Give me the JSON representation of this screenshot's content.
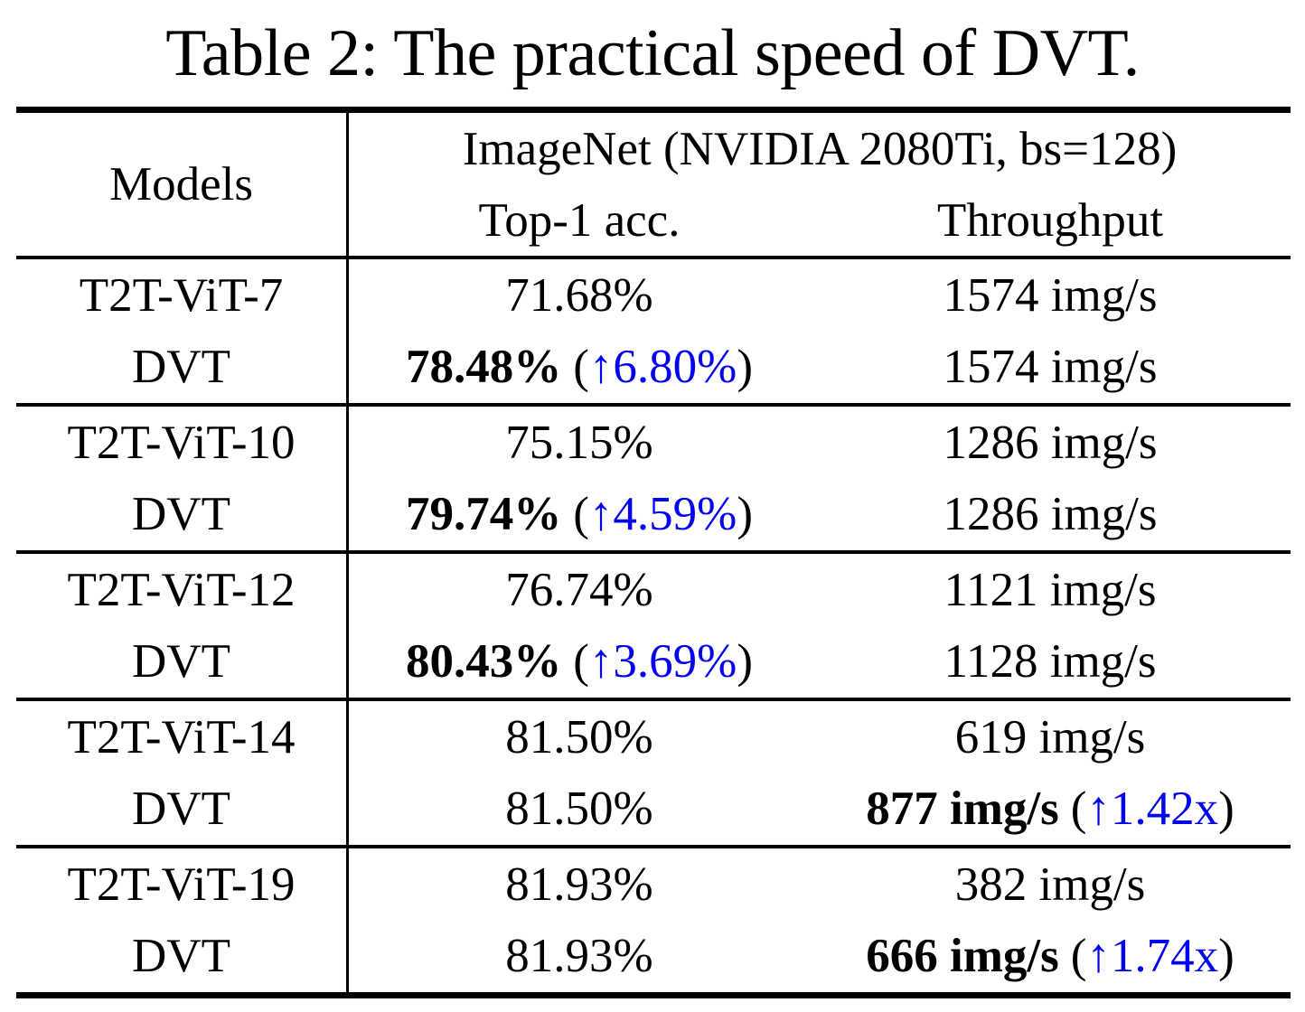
{
  "title": "Table 2: The practical speed of DVT.",
  "colors": {
    "gain_blue": "#0202F2",
    "text": "#000000"
  },
  "punct": {
    "open": "(",
    "close": ")"
  },
  "header": {
    "models": "Models",
    "group": "ImageNet (NVIDIA 2080Ti, bs=128)",
    "acc": "Top-1 acc.",
    "throughput": "Throughput"
  },
  "sections": [
    {
      "rows": [
        {
          "model": "T2T-ViT-7",
          "acc": "71.68%",
          "tp": "1574 img/s"
        },
        {
          "model": "DVT",
          "acc": "78.48%",
          "acc_gain": "↑6.80%",
          "tp": "1574 img/s"
        }
      ]
    },
    {
      "rows": [
        {
          "model": "T2T-ViT-10",
          "acc": "75.15%",
          "tp": "1286 img/s"
        },
        {
          "model": "DVT",
          "acc": "79.74%",
          "acc_gain": "↑4.59%",
          "tp": "1286 img/s"
        }
      ]
    },
    {
      "rows": [
        {
          "model": "T2T-ViT-12",
          "acc": "76.74%",
          "tp": "1121 img/s"
        },
        {
          "model": "DVT",
          "acc": "80.43%",
          "acc_gain": "↑3.69%",
          "tp": "1128 img/s"
        }
      ]
    },
    {
      "rows": [
        {
          "model": "T2T-ViT-14",
          "acc": "81.50%",
          "tp": "619 img/s"
        },
        {
          "model": "DVT",
          "acc": "81.50%",
          "tp": "877 img/s",
          "tp_gain": "↑1.42x"
        }
      ]
    },
    {
      "rows": [
        {
          "model": "T2T-ViT-19",
          "acc": "81.93%",
          "tp": "382 img/s"
        },
        {
          "model": "DVT",
          "acc": "81.93%",
          "tp": "666 img/s",
          "tp_gain": "↑1.74x"
        }
      ]
    }
  ]
}
